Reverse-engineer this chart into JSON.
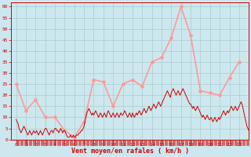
{
  "xlabel": "Vent moyen/en rafales ( km/h )",
  "bg_color": "#cce8ee",
  "grid_color": "#aacccc",
  "ylim": [
    0,
    62
  ],
  "yticks": [
    0,
    5,
    10,
    15,
    20,
    25,
    30,
    35,
    40,
    45,
    50,
    55,
    60
  ],
  "xticks": [
    0,
    1,
    2,
    3,
    4,
    5,
    6,
    7,
    8,
    9,
    10,
    11,
    12,
    13,
    14,
    15,
    16,
    17,
    18,
    19,
    20,
    21,
    22,
    23
  ],
  "mean_color": "#cc0000",
  "gust_color": "#ff9999",
  "gust_x": [
    0,
    1,
    2,
    3,
    4,
    5,
    6,
    7,
    8,
    9,
    10,
    11,
    12,
    13,
    14,
    15,
    16,
    17,
    18,
    19,
    20,
    21,
    22,
    23
  ],
  "gust_y": [
    25,
    13,
    18,
    10,
    10,
    4,
    1,
    8,
    27,
    26,
    15,
    25,
    27,
    24,
    35,
    37,
    46,
    60,
    47,
    22,
    21,
    20,
    28,
    35
  ],
  "mean_x": [
    0.0,
    0.1,
    0.2,
    0.3,
    0.4,
    0.5,
    0.6,
    0.7,
    0.8,
    0.9,
    1.0,
    1.1,
    1.2,
    1.3,
    1.4,
    1.5,
    1.6,
    1.7,
    1.8,
    1.9,
    2.0,
    2.1,
    2.2,
    2.3,
    2.4,
    2.5,
    2.6,
    2.7,
    2.8,
    2.9,
    3.0,
    3.1,
    3.2,
    3.3,
    3.4,
    3.5,
    3.6,
    3.7,
    3.8,
    3.9,
    4.0,
    4.1,
    4.2,
    4.3,
    4.4,
    4.5,
    4.6,
    4.7,
    4.8,
    4.9,
    5.0,
    5.1,
    5.2,
    5.3,
    5.4,
    5.5,
    5.6,
    5.7,
    5.8,
    5.9,
    6.0,
    6.1,
    6.2,
    6.3,
    6.4,
    6.5,
    6.6,
    6.7,
    6.8,
    6.9,
    7.0,
    7.1,
    7.2,
    7.3,
    7.4,
    7.5,
    7.6,
    7.7,
    7.8,
    7.9,
    8.0,
    8.1,
    8.2,
    8.3,
    8.4,
    8.5,
    8.6,
    8.7,
    8.8,
    8.9,
    9.0,
    9.1,
    9.2,
    9.3,
    9.4,
    9.5,
    9.6,
    9.7,
    9.8,
    9.9,
    10.0,
    10.1,
    10.2,
    10.3,
    10.4,
    10.5,
    10.6,
    10.7,
    10.8,
    10.9,
    11.0,
    11.1,
    11.2,
    11.3,
    11.4,
    11.5,
    11.6,
    11.7,
    11.8,
    11.9,
    12.0,
    12.1,
    12.2,
    12.3,
    12.4,
    12.5,
    12.6,
    12.7,
    12.8,
    12.9,
    13.0,
    13.1,
    13.2,
    13.3,
    13.4,
    13.5,
    13.6,
    13.7,
    13.8,
    13.9,
    14.0,
    14.1,
    14.2,
    14.3,
    14.4,
    14.5,
    14.6,
    14.7,
    14.8,
    14.9,
    15.0,
    15.1,
    15.2,
    15.3,
    15.4,
    15.5,
    15.6,
    15.7,
    15.8,
    15.9,
    16.0,
    16.1,
    16.2,
    16.3,
    16.4,
    16.5,
    16.6,
    16.7,
    16.8,
    16.9,
    17.0,
    17.1,
    17.2,
    17.3,
    17.4,
    17.5,
    17.6,
    17.7,
    17.8,
    17.9,
    18.0,
    18.1,
    18.2,
    18.3,
    18.4,
    18.5,
    18.6,
    18.7,
    18.8,
    18.9,
    19.0,
    19.1,
    19.2,
    19.3,
    19.4,
    19.5,
    19.6,
    19.7,
    19.8,
    19.9,
    20.0,
    20.1,
    20.2,
    20.3,
    20.4,
    20.5,
    20.6,
    20.7,
    20.8,
    20.9,
    21.0,
    21.1,
    21.2,
    21.3,
    21.4,
    21.5,
    21.6,
    21.7,
    21.8,
    21.9,
    22.0,
    22.1,
    22.2,
    22.3,
    22.4,
    22.5,
    22.6,
    22.7,
    22.8,
    22.9,
    23.0,
    23.1,
    23.2,
    23.3,
    23.4,
    23.5,
    23.6,
    23.7,
    23.8,
    23.9,
    24.0
  ],
  "mean_y": [
    9,
    8,
    7,
    5,
    4,
    3,
    4,
    5,
    6,
    5,
    4,
    3,
    2,
    3,
    4,
    3,
    2,
    3,
    4,
    3,
    3,
    4,
    3,
    2,
    3,
    4,
    3,
    2,
    3,
    4,
    5,
    5,
    4,
    3,
    2,
    3,
    4,
    4,
    3,
    4,
    5,
    5,
    4,
    4,
    3,
    4,
    5,
    4,
    3,
    4,
    4,
    3,
    2,
    1,
    1,
    1,
    2,
    1,
    1,
    2,
    1,
    1,
    2,
    2,
    2,
    3,
    3,
    4,
    4,
    5,
    6,
    8,
    10,
    12,
    13,
    14,
    13,
    12,
    11,
    12,
    11,
    12,
    13,
    12,
    11,
    10,
    11,
    12,
    11,
    10,
    11,
    12,
    11,
    10,
    12,
    13,
    12,
    11,
    10,
    11,
    12,
    11,
    10,
    11,
    12,
    11,
    10,
    11,
    12,
    11,
    11,
    12,
    13,
    12,
    11,
    10,
    11,
    12,
    11,
    10,
    12,
    11,
    10,
    11,
    12,
    11,
    12,
    13,
    12,
    11,
    12,
    13,
    14,
    13,
    12,
    13,
    14,
    15,
    14,
    13,
    14,
    15,
    16,
    15,
    14,
    15,
    16,
    17,
    16,
    15,
    16,
    17,
    18,
    19,
    20,
    21,
    22,
    21,
    20,
    19,
    21,
    22,
    23,
    22,
    21,
    20,
    21,
    22,
    21,
    20,
    21,
    22,
    23,
    22,
    21,
    20,
    19,
    18,
    17,
    16,
    16,
    15,
    14,
    15,
    14,
    13,
    14,
    15,
    14,
    13,
    12,
    11,
    10,
    11,
    10,
    9,
    10,
    11,
    10,
    9,
    9,
    10,
    9,
    8,
    9,
    10,
    9,
    8,
    9,
    10,
    9,
    10,
    11,
    12,
    13,
    12,
    11,
    12,
    13,
    12,
    13,
    14,
    15,
    14,
    13,
    14,
    15,
    14,
    13,
    14,
    15,
    16,
    17,
    16,
    14,
    12,
    10,
    8,
    6,
    5,
    4
  ]
}
